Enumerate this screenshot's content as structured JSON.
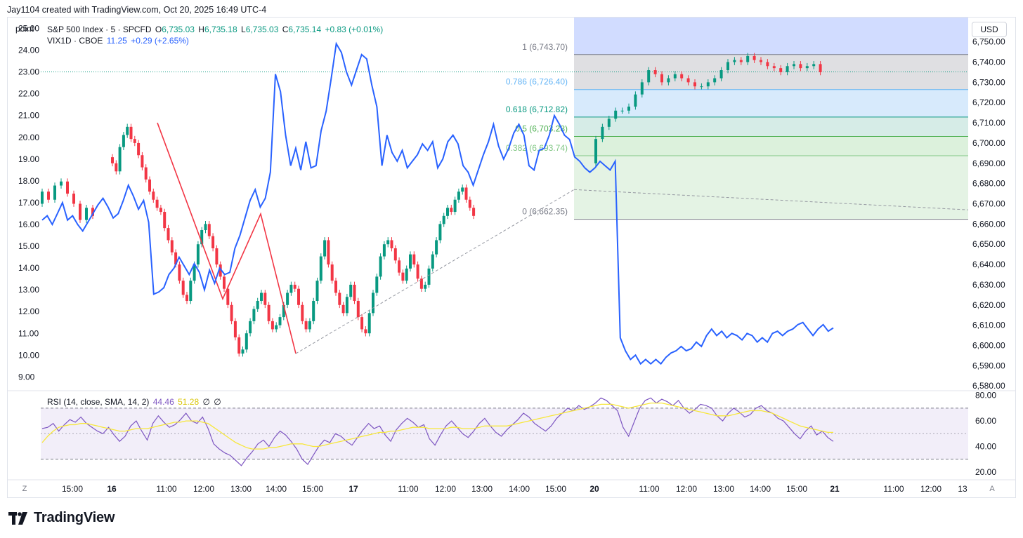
{
  "header": {
    "created_line": "Jay1104 created with TradingView.com, Oct 20, 2025 16:49 UTC-4"
  },
  "toolbar": {
    "left_scale_label": "point",
    "currency_label": "USD",
    "auto_label": "A",
    "log_label": "Z"
  },
  "legend": {
    "main": {
      "symbol": "S&P 500 Index · 5 · SPCFD",
      "o_label": "O",
      "o_value": "6,735.03",
      "h_label": "H",
      "h_value": "6,735.18",
      "l_label": "L",
      "l_value": "6,735.03",
      "c_label": "C",
      "c_value": "6,735.14",
      "change": "+0.83 (+0.01%)"
    },
    "vix": {
      "symbol": "VIX1D · CBOE",
      "value": "11.25",
      "change": "+0.29 (+2.65%)"
    },
    "rsi": {
      "label": "RSI (14, close, SMA, 14, 2)",
      "value1": "44.46",
      "value2": "51.28",
      "extra1": "∅",
      "extra2": "∅"
    }
  },
  "colors": {
    "up": "#089981",
    "down": "#f23645",
    "vix": "#2962ff",
    "rsi": "#7e57c2",
    "rsi_sma": "#f7e73a",
    "fib_line": "#f23645"
  },
  "branding": {
    "name": "TradingView"
  },
  "chart_data": [
    {
      "type": "candlestick",
      "title": "S&P 500 Index · 5 · SPCFD",
      "y_axis": {
        "side": "right",
        "range": [
          6578,
          6762
        ],
        "tick_labels": [
          "6,750.00",
          "6,740.00",
          "6,730.00",
          "6,720.00",
          "6,710.00",
          "6,700.00",
          "6,690.00",
          "6,680.00",
          "6,670.00",
          "6,660.00",
          "6,650.00",
          "6,640.00",
          "6,630.00",
          "6,620.00",
          "6,610.00",
          "6,600.00",
          "6,590.00",
          "6,580.00"
        ],
        "tick_values": [
          6750,
          6740,
          6730,
          6720,
          6710,
          6700,
          6690,
          6680,
          6670,
          6660,
          6650,
          6640,
          6630,
          6620,
          6610,
          6600,
          6590,
          6580
        ]
      },
      "x_axis": {
        "tick_labels": [
          "15:00",
          "16",
          "11:00",
          "12:00",
          "13:00",
          "14:00",
          "15:00",
          "17",
          "11:00",
          "12:00",
          "13:00",
          "14:00",
          "15:00",
          "20",
          "11:00",
          "12:00",
          "13:00",
          "14:00",
          "15:00",
          "21",
          "11:00",
          "12:00",
          "13"
        ],
        "bold_labels": [
          "16",
          "17",
          "20",
          "21"
        ]
      },
      "sessions": [
        {
          "day": "16",
          "path": [
            6670,
            6676,
            6672,
            6679,
            6681,
            6675,
            6670,
            6662,
            6668,
            6664
          ]
        },
        {
          "day": "16b",
          "path": [
            6693,
            6690,
            6686,
            6698,
            6704,
            6708,
            6702,
            6700,
            6694,
            6688,
            6682,
            6676,
            6672,
            6668,
            6666,
            6658,
            6652,
            6646,
            6640,
            6632,
            6625,
            6622,
            6632,
            6640,
            6650,
            6657,
            6660,
            6654,
            6648,
            6640,
            6634,
            6628,
            6620,
            6612,
            6604,
            6596,
            6598,
            6606,
            6612,
            6618,
            6622,
            6626,
            6620,
            6612,
            6608,
            6610,
            6614,
            6620,
            6626,
            6630,
            6628,
            6620,
            6612,
            6608,
            6612,
            6622,
            6632,
            6644,
            6652,
            6640,
            6632,
            6626,
            6620,
            6616,
            6624,
            6630,
            6622,
            6614,
            6608,
            6606,
            6616,
            6626,
            6634,
            6644,
            6650,
            6652,
            6648,
            6642,
            6636,
            6632,
            6638,
            6645,
            6640,
            6633,
            6628,
            6630,
            6638,
            6645,
            6652,
            6660,
            6664,
            6668,
            6666,
            6672,
            6676,
            6678,
            6672,
            6668,
            6664
          ]
        },
        {
          "day": "20",
          "path": [
            6690,
            6702,
            6708,
            6712,
            6716,
            6716,
            6718,
            6724,
            6730,
            6736,
            6734,
            6730,
            6732,
            6734,
            6732,
            6730,
            6728,
            6728,
            6730,
            6732,
            6736,
            6740,
            6741,
            6740,
            6743,
            6741,
            6740,
            6738,
            6737,
            6735,
            6738,
            6739,
            6737,
            6738,
            6739,
            6735
          ]
        }
      ],
      "fibonacci": {
        "levels": [
          {
            "ratio": "1",
            "value": 6743.7,
            "label": "1 (6,743.70)",
            "color": "#787b86",
            "fill": "#d9d9dd"
          },
          {
            "ratio": "0.786",
            "value": 6726.4,
            "label": "0.786 (6,726.40)",
            "color": "#64b5f6",
            "fill": "#d0e6fb"
          },
          {
            "ratio": "0.618",
            "value": 6712.82,
            "label": "0.618 (6,712.82)",
            "color": "#089981",
            "fill": "#cfe9e3"
          },
          {
            "ratio": "0.5",
            "value": 6703.28,
            "label": "0.5 (6,703.28)",
            "color": "#4caf50",
            "fill": "#d6eed6"
          },
          {
            "ratio": "0.382",
            "value": 6693.74,
            "label": "0.382 (6,693.74)",
            "color": "#81c784",
            "fill": "#dff1df"
          },
          {
            "ratio": "0",
            "value": 6662.35,
            "label": "0 (6,662.35)",
            "color": "#787b86",
            "fill": ""
          }
        ]
      },
      "zigzag_points": [
        6710,
        6623,
        6665,
        6596
      ]
    },
    {
      "type": "line",
      "title": "VIX1D · CBOE",
      "y_axis": {
        "side": "left",
        "range": [
          8.4,
          25.5
        ],
        "tick_labels": [
          "25.00",
          "24.00",
          "23.00",
          "22.00",
          "21.00",
          "20.00",
          "19.00",
          "18.00",
          "17.00",
          "16.00",
          "15.00",
          "14.00",
          "13.00",
          "12.00",
          "11.00",
          "10.00",
          "9.00"
        ],
        "tick_values": [
          25,
          24,
          23,
          22,
          21,
          20,
          19,
          18,
          17,
          16,
          15,
          14,
          13,
          12,
          11,
          10,
          9
        ]
      },
      "values": [
        16.2,
        16.4,
        16.0,
        16.5,
        17.0,
        16.2,
        16.4,
        16.0,
        15.7,
        16.1,
        16.5,
        16.9,
        17.2,
        16.8,
        16.3,
        16.5,
        17.1,
        17.8,
        17.3,
        16.7,
        17.1,
        16.1,
        12.8,
        12.9,
        13.1,
        13.7,
        14.0,
        14.5,
        14.1,
        13.7,
        14.2,
        13.8,
        13.0,
        13.9,
        13.3,
        14.0,
        13.7,
        13.8,
        14.9,
        15.5,
        16.3,
        17.1,
        17.6,
        16.8,
        17.2,
        18.4,
        22.9,
        22.1,
        20.1,
        18.7,
        19.5,
        18.5,
        19.8,
        18.6,
        18.7,
        20.3,
        21.2,
        22.7,
        24.3,
        23.9,
        23.0,
        22.4,
        23.1,
        23.8,
        23.6,
        22.4,
        21.4,
        18.7,
        20.1,
        19.3,
        18.9,
        19.4,
        18.6,
        18.9,
        19.2,
        19.7,
        19.4,
        19.8,
        18.6,
        19.0,
        19.8,
        20.1,
        19.7,
        18.7,
        18.4,
        17.8,
        18.5,
        19.2,
        19.8,
        20.6,
        19.6,
        19.0,
        19.5,
        20.2,
        20.6,
        20.1,
        18.7,
        18.5,
        19.4,
        19.5,
        20.1,
        21.0,
        20.6,
        20.1,
        19.9,
        19.1,
        18.9,
        18.6,
        18.4,
        18.6,
        18.9,
        18.7,
        18.5,
        18.9,
        10.8,
        10.2,
        9.8,
        10.0,
        9.6,
        9.8,
        9.6,
        9.8,
        9.6,
        9.9,
        10.1,
        10.2,
        10.4,
        10.2,
        10.3,
        10.6,
        10.4,
        10.9,
        11.2,
        10.9,
        11.1,
        10.8,
        11.0,
        10.9,
        10.7,
        11.0,
        10.9,
        10.6,
        10.8,
        10.6,
        11.0,
        11.1,
        10.9,
        11.1,
        11.2,
        11.4,
        11.5,
        11.2,
        10.9,
        11.2,
        11.4,
        11.1,
        11.25
      ]
    },
    {
      "type": "line",
      "title": "RSI (14, close, SMA, 14, 2)",
      "y_axis": {
        "side": "right",
        "range": [
          15,
          82
        ],
        "tick_labels": [
          "80.00",
          "60.00",
          "40.00",
          "20.00"
        ],
        "tick_values": [
          80,
          60,
          40,
          20
        ],
        "band": [
          30,
          70
        ],
        "middle": 50
      },
      "series": [
        {
          "name": "RSI",
          "values": [
            54,
            55,
            58,
            52,
            57,
            61,
            59,
            63,
            58,
            55,
            52,
            50,
            55,
            49,
            44,
            48,
            56,
            60,
            52,
            45,
            58,
            64,
            59,
            55,
            57,
            61,
            66,
            60,
            58,
            63,
            54,
            42,
            38,
            35,
            33,
            29,
            25,
            31,
            36,
            42,
            45,
            40,
            47,
            52,
            49,
            44,
            38,
            30,
            26,
            33,
            40,
            45,
            43,
            50,
            48,
            44,
            41,
            47,
            53,
            58,
            54,
            56,
            49,
            44,
            53,
            58,
            62,
            59,
            55,
            57,
            46,
            41,
            49,
            56,
            60,
            55,
            50,
            47,
            52,
            58,
            62,
            56,
            51,
            48,
            53,
            57,
            61,
            66,
            63,
            58,
            55,
            52,
            56,
            62,
            66,
            70,
            68,
            72,
            69,
            71,
            74,
            78,
            76,
            72,
            68,
            55,
            48,
            59,
            70,
            76,
            78,
            74,
            77,
            75,
            72,
            76,
            70,
            66,
            69,
            73,
            72,
            70,
            64,
            60,
            66,
            70,
            67,
            63,
            65,
            70,
            72,
            68,
            66,
            62,
            60,
            55,
            50,
            46,
            52,
            56,
            49,
            52,
            47,
            44
          ]
        },
        {
          "name": "SMA",
          "values": [
            43,
            48,
            52,
            55,
            56,
            57,
            57,
            58,
            58,
            57,
            56,
            55,
            54,
            53,
            52,
            52,
            53,
            54,
            54,
            54,
            55,
            56,
            57,
            58,
            59,
            59,
            60,
            60,
            60,
            59,
            58,
            55,
            52,
            49,
            46,
            43,
            41,
            39,
            38,
            38,
            38,
            39,
            39,
            40,
            41,
            42,
            42,
            42,
            41,
            40,
            40,
            41,
            42,
            43,
            44,
            45,
            46,
            47,
            48,
            49,
            50,
            51,
            51,
            52,
            52,
            53,
            54,
            55,
            55,
            55,
            54,
            54,
            54,
            54,
            55,
            55,
            54,
            54,
            54,
            55,
            56,
            56,
            56,
            56,
            56,
            57,
            58,
            59,
            60,
            61,
            62,
            63,
            64,
            65,
            66,
            67,
            68,
            69,
            70,
            71,
            72,
            73,
            73,
            73,
            72,
            71,
            70,
            71,
            72,
            73,
            74,
            74,
            74,
            73,
            72,
            71,
            70,
            69,
            68,
            67,
            66,
            65,
            64,
            64,
            64,
            65,
            66,
            67,
            68,
            68,
            68,
            67,
            66,
            64,
            62,
            60,
            58,
            56,
            55,
            54,
            53,
            52,
            51,
            51
          ]
        }
      ]
    }
  ]
}
